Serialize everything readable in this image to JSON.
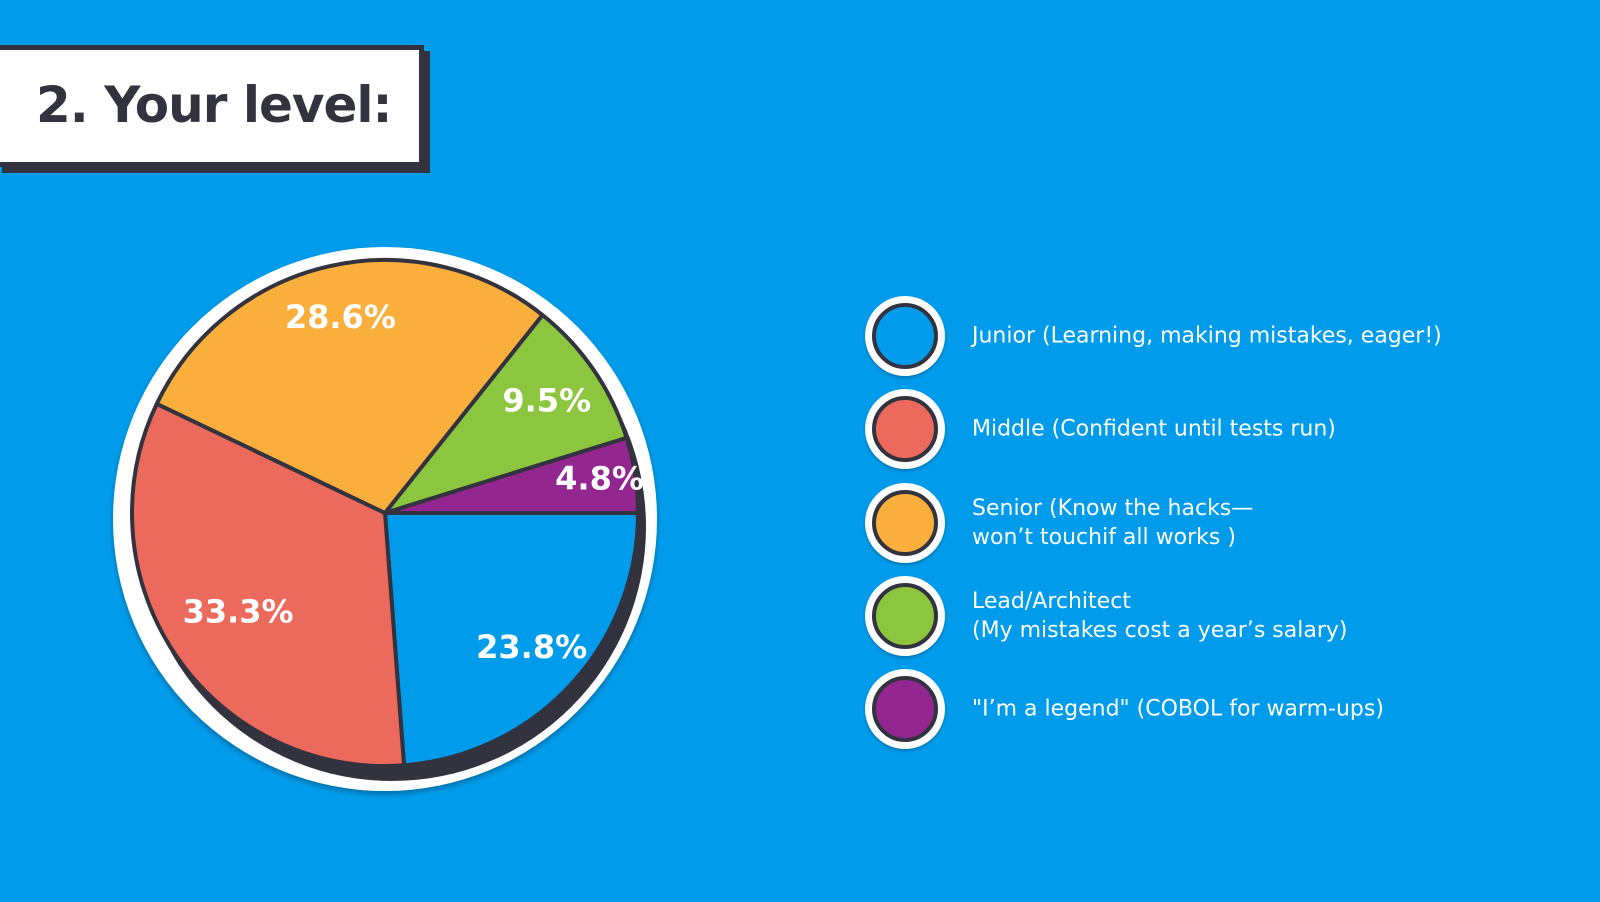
{
  "title": "2. Your level:",
  "chart_data": {
    "type": "pie",
    "title": "2. Your level:",
    "slices": [
      {
        "label": "Junior (Learning, making mistakes, eager!)",
        "value": 23.8,
        "display": "23.8%",
        "color": "#009ceb"
      },
      {
        "label": "Middle (Confident until tests run)",
        "value": 33.3,
        "display": "33.3%",
        "color": "#ec6a5b"
      },
      {
        "label": "Senior (Know the hacks—\nwon’t touchif all works )",
        "value": 28.6,
        "display": "28.6%",
        "color": "#faaf3d"
      },
      {
        "label": "Lead/Architect\n(My mistakes cost a year’s salary)",
        "value": 9.5,
        "display": "9.5%",
        "color": "#8cc63f"
      },
      {
        "label": "\"I’m a legend\" (COBOL for warm-ups)",
        "value": 4.8,
        "display": "4.8%",
        "color": "#93278f"
      }
    ],
    "start_angle_deg": 0,
    "direction": "clockwise",
    "legend_position": "right"
  }
}
